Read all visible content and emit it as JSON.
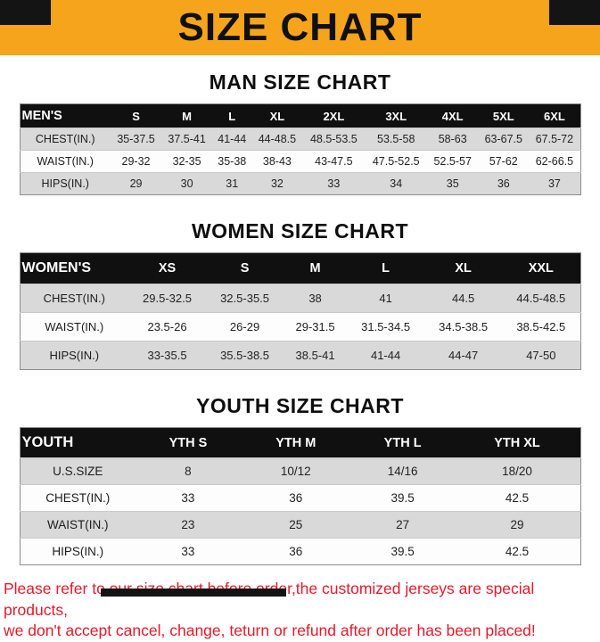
{
  "banner": {
    "title": "SIZE CHART",
    "background_color": "#F6A41C",
    "corner_color": "#141414"
  },
  "colors": {
    "table_header_bg": "#101010",
    "table_header_text": "#FFFFFF",
    "row_stripe_gray": "#D9D9D9",
    "footer_red": "#E4192B"
  },
  "sections": [
    {
      "title": "MAN SIZE CHART",
      "table": {
        "header": [
          "MEN'S",
          "S",
          "M",
          "L",
          "XL",
          "2XL",
          "3XL",
          "4XL",
          "5XL",
          "6XL"
        ],
        "rows": [
          [
            "CHEST(IN.)",
            "35-37.5",
            "37.5-41",
            "41-44",
            "44-48.5",
            "48.5-53.5",
            "53.5-58",
            "58-63",
            "63-67.5",
            "67.5-72"
          ],
          [
            "WAIST(IN.)",
            "29-32",
            "32-35",
            "35-38",
            "38-43",
            "43-47.5",
            "47.5-52.5",
            "52.5-57",
            "57-62",
            "62-66.5"
          ],
          [
            "HIPS(IN.)",
            "29",
            "30",
            "31",
            "32",
            "33",
            "34",
            "35",
            "36",
            "37"
          ]
        ]
      }
    },
    {
      "title": "WOMEN SIZE CHART",
      "table": {
        "header": [
          "WOMEN'S",
          "XS",
          "S",
          "M",
          "L",
          "XL",
          "XXL"
        ],
        "rows": [
          [
            "CHEST(IN.)",
            "29.5-32.5",
            "32.5-35.5",
            "38",
            "41",
            "44.5",
            "44.5-48.5"
          ],
          [
            "WAIST(IN.)",
            "23.5-26",
            "26-29",
            "29-31.5",
            "31.5-34.5",
            "34.5-38.5",
            "38.5-42.5"
          ],
          [
            "HIPS(IN.)",
            "33-35.5",
            "35.5-38.5",
            "38.5-41",
            "41-44",
            "44-47",
            "47-50"
          ]
        ]
      }
    },
    {
      "title": "YOUTH SIZE CHART",
      "table": {
        "header": [
          "YOUTH",
          "YTH S",
          "YTH M",
          "YTH L",
          "YTH XL"
        ],
        "rows": [
          [
            "U.S.SIZE",
            "8",
            "10/12",
            "14/16",
            "18/20"
          ],
          [
            "CHEST(IN.)",
            "33",
            "36",
            "39.5",
            "42.5"
          ],
          [
            "WAIST(IN.)",
            "23",
            "25",
            "27",
            "29"
          ],
          [
            "HIPS(IN.)",
            "33",
            "36",
            "39.5",
            "42.5"
          ]
        ]
      }
    }
  ],
  "footer": {
    "line1": "Please refer to our size chart before order,the customized jerseys are special products,",
    "line2": "we don't accept cancel, change, teturn or refund after order has been placed!"
  }
}
